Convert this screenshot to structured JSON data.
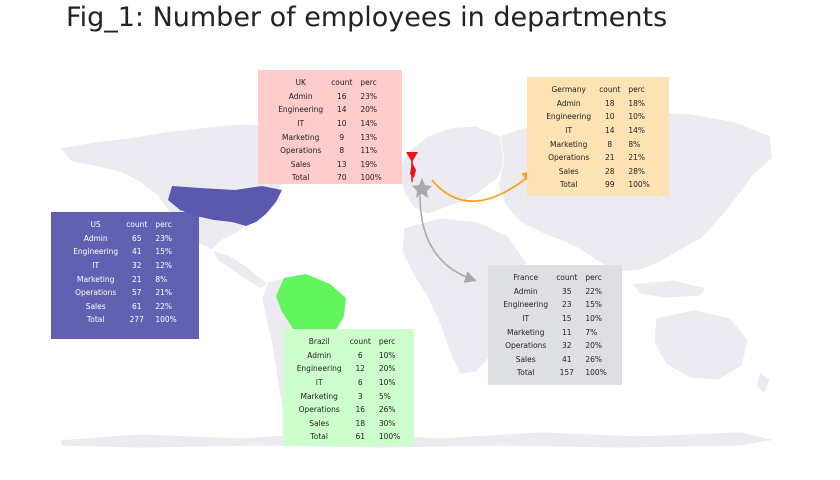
{
  "title": "Fig_1: Number of employees in departments",
  "colors": {
    "land": "#ecebf2",
    "border": "#ffffff",
    "us": "#5a59ad",
    "brazil": "#63f55e",
    "uk_flag": "#ee1111",
    "origin_star": "#a8a8b0",
    "arrow_germany": "#f5a623",
    "arrow_france": "#a8a8a8"
  },
  "icons": {
    "origin": "star-icon",
    "uk_marker": "flag-icon"
  },
  "panels": [
    {
      "country": "US",
      "color": "#5a59ad",
      "text_color": "#ffffff",
      "headers": [
        "US",
        "count",
        "perc"
      ],
      "rows": [
        [
          "Admin",
          "65",
          "23%"
        ],
        [
          "Engineering",
          "41",
          "15%"
        ],
        [
          "IT",
          "32",
          "12%"
        ],
        [
          "Marketing",
          "21",
          "8%"
        ],
        [
          "Operations",
          "57",
          "21%"
        ],
        [
          "Sales",
          "61",
          "22%"
        ],
        [
          "Total",
          "277",
          "100%"
        ]
      ]
    },
    {
      "country": "UK",
      "color": "#ffcccc",
      "text_color": "#222222",
      "headers": [
        "UK",
        "count",
        "perc"
      ],
      "rows": [
        [
          "Admin",
          "16",
          "23%"
        ],
        [
          "Engineering",
          "14",
          "20%"
        ],
        [
          "IT",
          "10",
          "14%"
        ],
        [
          "Marketing",
          "9",
          "13%"
        ],
        [
          "Operations",
          "8",
          "11%"
        ],
        [
          "Sales",
          "13",
          "19%"
        ],
        [
          "Total",
          "70",
          "100%"
        ]
      ]
    },
    {
      "country": "Germany",
      "color": "#fde2b3",
      "text_color": "#222222",
      "headers": [
        "Germany",
        "count",
        "perc"
      ],
      "rows": [
        [
          "Admin",
          "18",
          "18%"
        ],
        [
          "Engineering",
          "10",
          "10%"
        ],
        [
          "IT",
          "14",
          "14%"
        ],
        [
          "Marketing",
          "8",
          "8%"
        ],
        [
          "Operations",
          "21",
          "21%"
        ],
        [
          "Sales",
          "28",
          "28%"
        ],
        [
          "Total",
          "99",
          "100%"
        ]
      ]
    },
    {
      "country": "France",
      "color": "#dddfe2",
      "text_color": "#222222",
      "headers": [
        "France",
        "count",
        "perc"
      ],
      "rows": [
        [
          "Admin",
          "35",
          "22%"
        ],
        [
          "Engineering",
          "23",
          "15%"
        ],
        [
          "IT",
          "15",
          "10%"
        ],
        [
          "Marketing",
          "11",
          "7%"
        ],
        [
          "Operations",
          "32",
          "20%"
        ],
        [
          "Sales",
          "41",
          "26%"
        ],
        [
          "Total",
          "157",
          "100%"
        ]
      ]
    },
    {
      "country": "Brazil",
      "color": "#ccffcc",
      "text_color": "#222222",
      "headers": [
        "Brazil",
        "count",
        "perc"
      ],
      "rows": [
        [
          "Admin",
          "6",
          "10%"
        ],
        [
          "Engineering",
          "12",
          "20%"
        ],
        [
          "IT",
          "6",
          "10%"
        ],
        [
          "Marketing",
          "3",
          "5%"
        ],
        [
          "Operations",
          "16",
          "26%"
        ],
        [
          "Sales",
          "18",
          "30%"
        ],
        [
          "Total",
          "61",
          "100%"
        ]
      ]
    }
  ]
}
